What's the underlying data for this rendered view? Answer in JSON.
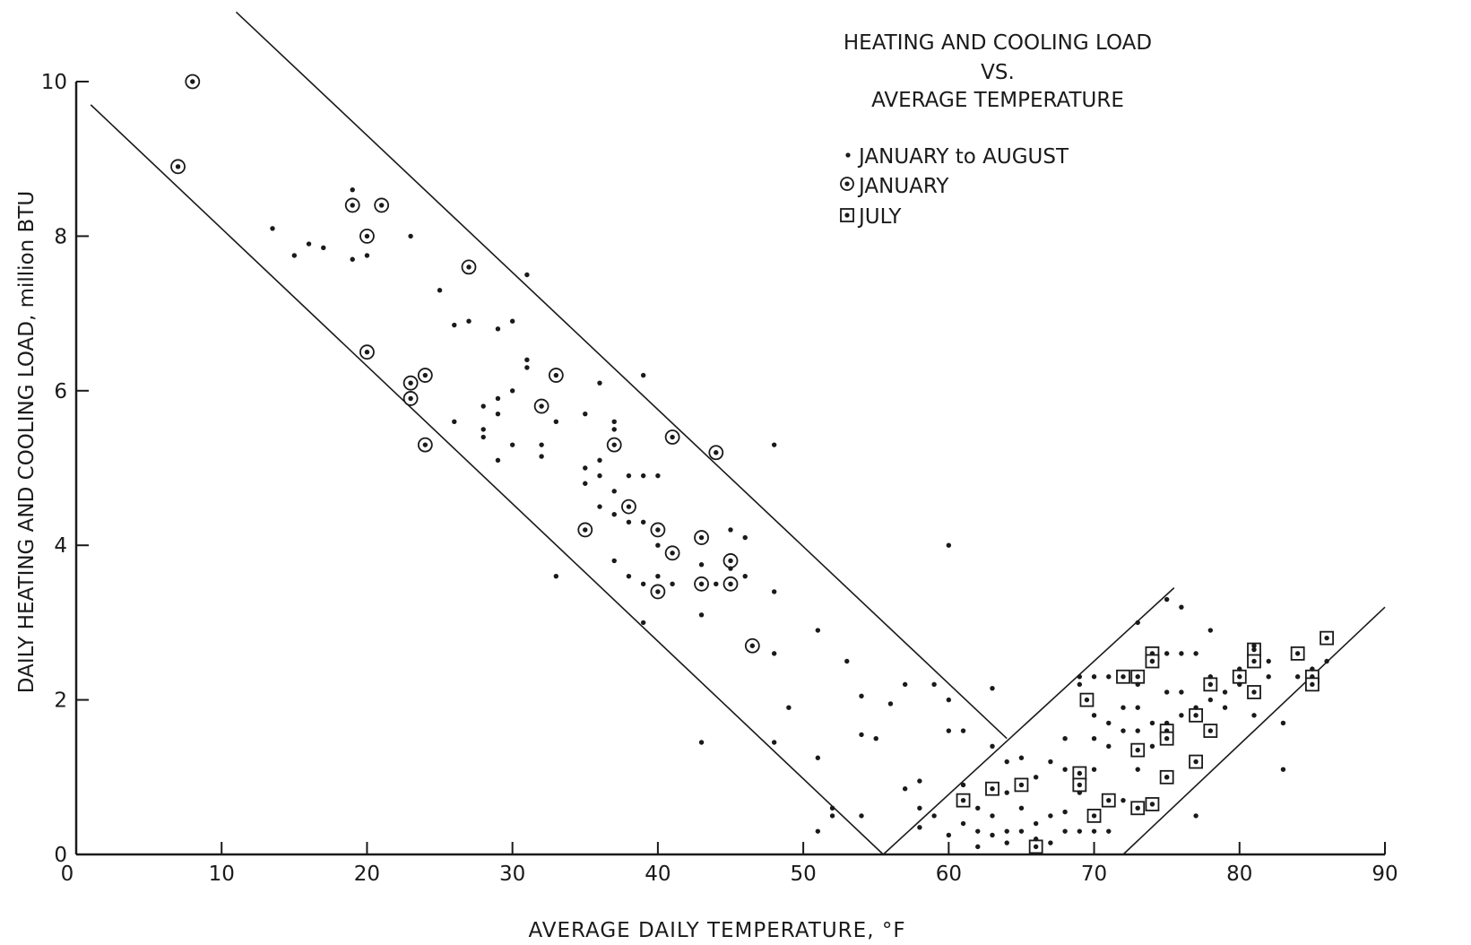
{
  "chart_data": {
    "type": "scatter",
    "title": [
      "HEATING AND COOLING LOAD",
      "VS.",
      "AVERAGE TEMPERATURE"
    ],
    "xlabel": "AVERAGE DAILY TEMPERATURE, °F",
    "ylabel": "DAILY HEATING AND COOLING LOAD, million BTU",
    "xlim": [
      0,
      90
    ],
    "ylim": [
      0,
      10
    ],
    "x_ticks": [
      "0",
      "10",
      "20",
      "30",
      "40",
      "50",
      "60",
      "70",
      "80",
      "90"
    ],
    "y_ticks": [
      "0",
      "2",
      "4",
      "6",
      "8",
      "10"
    ],
    "grid": false,
    "legend_position": "top-right",
    "legend": [
      {
        "marker": "dot",
        "label": "JANUARY to AUGUST"
      },
      {
        "marker": "circle-dot",
        "label": "JANUARY"
      },
      {
        "marker": "square-dot",
        "label": "JULY"
      }
    ],
    "envelope_lines": [
      {
        "name": "heating-upper",
        "x": [
          11,
          64
        ],
        "y": [
          10.9,
          1.5
        ]
      },
      {
        "name": "heating-lower",
        "x": [
          1,
          55.5
        ],
        "y": [
          9.7,
          0
        ]
      },
      {
        "name": "cooling-upper",
        "x": [
          55.5,
          75.5
        ],
        "y": [
          0,
          3.45
        ]
      },
      {
        "name": "cooling-lower",
        "x": [
          72,
          90
        ],
        "y": [
          0,
          3.2
        ]
      }
    ],
    "series": [
      {
        "name": "JANUARY",
        "marker": "circle-dot",
        "points": [
          [
            7,
            8.9
          ],
          [
            8,
            10.0
          ],
          [
            19,
            8.4
          ],
          [
            20,
            8.0
          ],
          [
            21,
            8.4
          ],
          [
            20,
            6.5
          ],
          [
            23,
            6.1
          ],
          [
            23,
            5.9
          ],
          [
            24,
            6.2
          ],
          [
            24,
            5.3
          ],
          [
            27,
            7.6
          ],
          [
            32,
            5.8
          ],
          [
            33,
            6.2
          ],
          [
            35,
            4.2
          ],
          [
            37,
            5.3
          ],
          [
            38,
            4.5
          ],
          [
            40,
            4.2
          ],
          [
            40,
            3.4
          ],
          [
            41,
            3.9
          ],
          [
            41,
            5.4
          ],
          [
            43,
            3.5
          ],
          [
            43,
            4.1
          ],
          [
            44,
            5.2
          ],
          [
            45,
            3.8
          ],
          [
            45,
            3.5
          ],
          [
            46.5,
            2.7
          ]
        ]
      },
      {
        "name": "JULY",
        "marker": "square-dot",
        "points": [
          [
            61,
            0.7
          ],
          [
            63,
            0.85
          ],
          [
            65,
            0.9
          ],
          [
            66,
            0.1
          ],
          [
            69,
            1.05
          ],
          [
            69,
            0.9
          ],
          [
            69.5,
            2.0
          ],
          [
            70,
            0.5
          ],
          [
            71,
            0.7
          ],
          [
            72,
            2.3
          ],
          [
            73,
            2.3
          ],
          [
            73,
            1.35
          ],
          [
            73,
            0.6
          ],
          [
            74,
            2.6
          ],
          [
            74,
            2.5
          ],
          [
            74,
            0.65
          ],
          [
            75,
            1.0
          ],
          [
            75,
            1.6
          ],
          [
            75,
            1.5
          ],
          [
            77,
            1.8
          ],
          [
            77,
            1.2
          ],
          [
            78,
            2.2
          ],
          [
            78,
            1.6
          ],
          [
            80,
            2.3
          ],
          [
            81,
            2.65
          ],
          [
            81,
            2.5
          ],
          [
            81,
            2.1
          ],
          [
            84,
            2.6
          ],
          [
            85,
            2.3
          ],
          [
            85,
            2.2
          ],
          [
            86,
            2.8
          ]
        ]
      },
      {
        "name": "JANUARY to AUGUST",
        "marker": "dot",
        "points": [
          [
            13.5,
            8.1
          ],
          [
            15,
            7.75
          ],
          [
            16,
            7.9
          ],
          [
            17,
            7.85
          ],
          [
            19,
            8.6
          ],
          [
            19,
            7.7
          ],
          [
            20,
            7.75
          ],
          [
            23,
            8.0
          ],
          [
            25,
            7.3
          ],
          [
            26,
            6.85
          ],
          [
            26,
            5.6
          ],
          [
            27,
            6.9
          ],
          [
            28,
            5.8
          ],
          [
            28,
            5.5
          ],
          [
            28,
            5.4
          ],
          [
            29,
            6.8
          ],
          [
            29,
            5.9
          ],
          [
            29,
            5.7
          ],
          [
            29,
            5.1
          ],
          [
            30,
            6.9
          ],
          [
            30,
            6.0
          ],
          [
            30,
            5.3
          ],
          [
            31,
            7.5
          ],
          [
            31,
            6.4
          ],
          [
            31,
            6.3
          ],
          [
            32,
            5.3
          ],
          [
            32,
            5.15
          ],
          [
            33,
            5.6
          ],
          [
            33,
            3.6
          ],
          [
            35,
            5.7
          ],
          [
            35,
            5.0
          ],
          [
            35,
            4.8
          ],
          [
            36,
            6.1
          ],
          [
            36,
            5.1
          ],
          [
            36,
            4.9
          ],
          [
            36,
            4.5
          ],
          [
            37,
            5.6
          ],
          [
            37,
            5.5
          ],
          [
            37,
            4.7
          ],
          [
            37,
            4.4
          ],
          [
            37,
            3.8
          ],
          [
            38,
            4.9
          ],
          [
            38,
            4.3
          ],
          [
            38,
            3.6
          ],
          [
            39,
            6.2
          ],
          [
            39,
            4.9
          ],
          [
            39,
            4.3
          ],
          [
            39,
            3.5
          ],
          [
            39,
            3.0
          ],
          [
            40,
            4.9
          ],
          [
            40,
            4.0
          ],
          [
            40,
            3.6
          ],
          [
            41,
            3.5
          ],
          [
            43,
            3.75
          ],
          [
            43,
            3.1
          ],
          [
            43,
            1.45
          ],
          [
            44,
            3.5
          ],
          [
            45,
            4.2
          ],
          [
            45,
            3.7
          ],
          [
            46,
            4.1
          ],
          [
            46,
            3.6
          ],
          [
            48,
            5.3
          ],
          [
            48,
            3.4
          ],
          [
            48,
            2.6
          ],
          [
            48,
            1.45
          ],
          [
            49,
            1.9
          ],
          [
            51,
            2.9
          ],
          [
            51,
            1.25
          ],
          [
            51,
            0.3
          ],
          [
            52,
            0.6
          ],
          [
            52,
            0.5
          ],
          [
            53,
            2.5
          ],
          [
            54,
            2.05
          ],
          [
            54,
            1.55
          ],
          [
            54,
            0.5
          ],
          [
            55,
            1.5
          ],
          [
            56,
            1.95
          ],
          [
            57,
            2.2
          ],
          [
            57,
            0.85
          ],
          [
            58,
            0.95
          ],
          [
            58,
            0.6
          ],
          [
            58,
            0.35
          ],
          [
            59,
            0.5
          ],
          [
            59,
            2.2
          ],
          [
            60,
            4.0
          ],
          [
            60,
            2.0
          ],
          [
            60,
            1.6
          ],
          [
            60,
            0.25
          ],
          [
            61,
            1.6
          ],
          [
            61,
            0.9
          ],
          [
            61,
            0.4
          ],
          [
            62,
            0.6
          ],
          [
            62,
            0.3
          ],
          [
            62,
            0.1
          ],
          [
            63,
            1.4
          ],
          [
            63,
            2.15
          ],
          [
            63,
            0.5
          ],
          [
            63,
            0.25
          ],
          [
            64,
            1.2
          ],
          [
            64,
            0.8
          ],
          [
            64,
            0.3
          ],
          [
            64,
            0.15
          ],
          [
            65,
            1.25
          ],
          [
            65,
            0.6
          ],
          [
            65,
            0.3
          ],
          [
            66,
            1.0
          ],
          [
            66,
            0.4
          ],
          [
            66,
            0.2
          ],
          [
            67,
            1.2
          ],
          [
            67,
            0.5
          ],
          [
            67,
            0.15
          ],
          [
            68,
            1.5
          ],
          [
            68,
            1.1
          ],
          [
            68,
            0.55
          ],
          [
            68,
            0.3
          ],
          [
            69,
            2.3
          ],
          [
            69,
            2.2
          ],
          [
            69,
            0.8
          ],
          [
            69,
            0.3
          ],
          [
            70,
            2.3
          ],
          [
            70,
            1.8
          ],
          [
            70,
            1.5
          ],
          [
            70,
            1.1
          ],
          [
            70,
            0.3
          ],
          [
            71,
            2.3
          ],
          [
            71,
            1.7
          ],
          [
            71,
            1.4
          ],
          [
            71,
            0.3
          ],
          [
            72,
            1.9
          ],
          [
            72,
            1.6
          ],
          [
            72,
            0.7
          ],
          [
            73,
            3.0
          ],
          [
            73,
            2.2
          ],
          [
            73,
            1.9
          ],
          [
            73,
            1.6
          ],
          [
            73,
            1.1
          ],
          [
            74,
            2.5
          ],
          [
            74,
            1.7
          ],
          [
            74,
            1.4
          ],
          [
            75,
            3.3
          ],
          [
            75,
            2.6
          ],
          [
            75,
            2.1
          ],
          [
            75,
            1.7
          ],
          [
            75,
            1.0
          ],
          [
            76,
            3.2
          ],
          [
            76,
            2.6
          ],
          [
            76,
            2.1
          ],
          [
            76,
            1.8
          ],
          [
            77,
            2.6
          ],
          [
            77,
            1.9
          ],
          [
            77,
            0.5
          ],
          [
            78,
            2.9
          ],
          [
            78,
            2.3
          ],
          [
            78,
            2.0
          ],
          [
            79,
            2.1
          ],
          [
            79,
            1.9
          ],
          [
            80,
            2.4
          ],
          [
            80,
            2.2
          ],
          [
            81,
            2.7
          ],
          [
            81,
            1.8
          ],
          [
            82,
            2.5
          ],
          [
            82,
            2.3
          ],
          [
            83,
            1.7
          ],
          [
            83,
            1.1
          ],
          [
            84,
            2.3
          ],
          [
            85,
            2.4
          ],
          [
            86,
            2.5
          ]
        ]
      }
    ]
  }
}
